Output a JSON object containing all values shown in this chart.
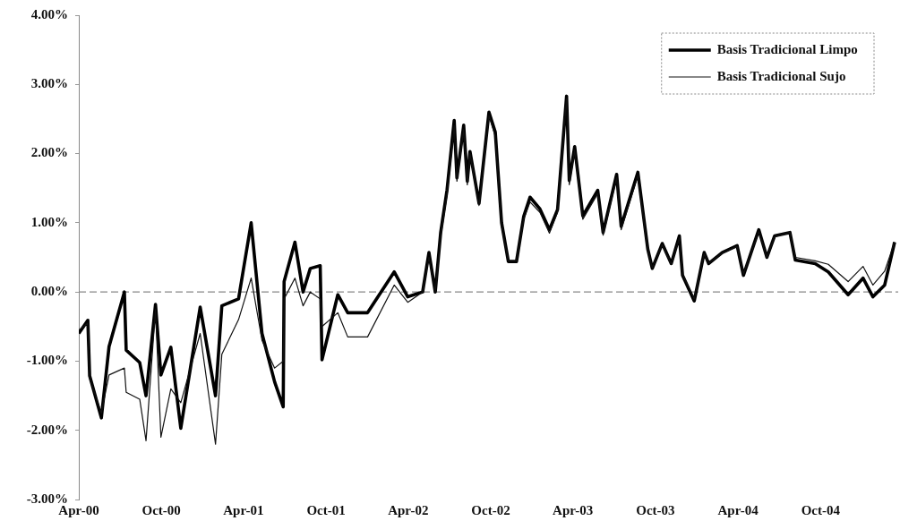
{
  "chart_data": {
    "type": "line",
    "legend": "top right",
    "grid": false,
    "marker": "none",
    "x": [
      "2000-04-01",
      "2000-04-21",
      "2000-04-25",
      "2000-05-21",
      "2000-06-07",
      "2000-07-11",
      "2000-07-15",
      "2000-08-14",
      "2000-08-28",
      "2000-09-18",
      "2000-09-30",
      "2000-10-22",
      "2000-11-13",
      "2000-12-26",
      "2001-01-29",
      "2001-02-12",
      "2001-03-21",
      "2001-04-18",
      "2001-05-12",
      "2001-06-09",
      "2001-06-28",
      "2001-06-30",
      "2001-07-24",
      "2001-08-11",
      "2001-08-27",
      "2001-09-18",
      "2001-09-22",
      "2001-10-27",
      "2001-11-18",
      "2002-01-01",
      "2002-03-01",
      "2002-03-31",
      "2002-05-03",
      "2002-05-17",
      "2002-05-31",
      "2002-06-12",
      "2002-06-26",
      "2002-07-12",
      "2002-07-18",
      "2002-08-02",
      "2002-08-10",
      "2002-08-16",
      "2002-09-05",
      "2002-09-27",
      "2002-10-11",
      "2002-10-25",
      "2002-11-09",
      "2002-11-27",
      "2002-12-13",
      "2002-12-27",
      "2003-01-18",
      "2003-02-08",
      "2003-02-26",
      "2003-03-18",
      "2003-03-24",
      "2003-04-05",
      "2003-04-23",
      "2003-05-26",
      "2003-06-07",
      "2003-07-07",
      "2003-07-17",
      "2003-08-23",
      "2003-09-14",
      "2003-09-24",
      "2003-10-16",
      "2003-11-05",
      "2003-11-23",
      "2003-11-30",
      "2003-12-26",
      "2004-01-17",
      "2004-01-27",
      "2004-02-26",
      "2004-03-30",
      "2004-04-13",
      "2004-05-17",
      "2004-06-04",
      "2004-06-21",
      "2004-07-25",
      "2004-08-06",
      "2004-09-19",
      "2004-10-18",
      "2004-12-01",
      "2005-01-03",
      "2005-01-25",
      "2005-02-20",
      "2005-03-14"
    ],
    "series": [
      {
        "name": "Basis Tradicional Limpo",
        "color": "#000000",
        "values": [
          -0.6,
          -0.41,
          -1.21,
          -1.82,
          -0.79,
          0.0,
          -0.84,
          -1.02,
          -1.5,
          -0.18,
          -1.2,
          -0.8,
          -1.97,
          -0.22,
          -1.5,
          -0.2,
          -0.1,
          1.0,
          -0.6,
          -1.3,
          -1.66,
          0.15,
          0.72,
          0.0,
          0.34,
          0.38,
          -0.98,
          -0.04,
          -0.3,
          -0.3,
          0.29,
          -0.07,
          0.0,
          0.57,
          0.0,
          0.86,
          1.47,
          2.48,
          1.65,
          2.41,
          1.6,
          2.03,
          1.28,
          2.6,
          2.31,
          1.0,
          0.44,
          0.44,
          1.09,
          1.37,
          1.2,
          0.9,
          1.19,
          2.83,
          1.61,
          2.1,
          1.1,
          1.47,
          0.86,
          1.7,
          0.95,
          1.73,
          0.62,
          0.34,
          0.7,
          0.41,
          0.81,
          0.24,
          -0.13,
          0.57,
          0.41,
          0.57,
          0.67,
          0.24,
          0.9,
          0.5,
          0.81,
          0.86,
          0.46,
          0.41,
          0.29,
          -0.04,
          0.2,
          -0.07,
          0.1,
          0.72
        ]
      },
      {
        "name": "Basis Tradicional Sujo",
        "color": "#111111",
        "values": [
          -0.55,
          -0.45,
          -1.25,
          -1.75,
          -1.2,
          -1.1,
          -1.45,
          -1.55,
          -2.15,
          -0.25,
          -2.1,
          -1.4,
          -1.6,
          -0.6,
          -2.2,
          -0.9,
          -0.4,
          0.2,
          -0.7,
          -1.1,
          -1.0,
          -0.1,
          0.2,
          -0.2,
          0.0,
          -0.1,
          -0.5,
          -0.3,
          -0.65,
          -0.65,
          0.1,
          -0.15,
          0.0,
          0.5,
          0.0,
          0.8,
          1.4,
          2.4,
          1.6,
          2.35,
          1.55,
          2.0,
          1.25,
          2.55,
          2.25,
          0.95,
          0.45,
          0.45,
          1.05,
          1.3,
          1.15,
          0.85,
          1.15,
          2.8,
          1.55,
          2.05,
          1.05,
          1.42,
          0.82,
          1.65,
          0.9,
          1.68,
          0.6,
          0.35,
          0.68,
          0.4,
          0.78,
          0.25,
          -0.1,
          0.55,
          0.42,
          0.56,
          0.66,
          0.26,
          0.87,
          0.5,
          0.8,
          0.86,
          0.5,
          0.45,
          0.4,
          0.15,
          0.37,
          0.1,
          0.3,
          0.72
        ]
      }
    ],
    "ref_lines": [
      {
        "axis": "y",
        "value": 0,
        "color": "#888888",
        "line_style": "dashed"
      }
    ],
    "ylim": [
      -3,
      4
    ],
    "yticks": [
      {
        "value": -3,
        "label": "-3.00%"
      },
      {
        "value": -2,
        "label": "-2.00%"
      },
      {
        "value": -1,
        "label": "-1.00%"
      },
      {
        "value": 0,
        "label": "0.00%"
      },
      {
        "value": 1,
        "label": "1.00%"
      },
      {
        "value": 2,
        "label": "2.00%"
      },
      {
        "value": 3,
        "label": "3.00%"
      },
      {
        "value": 4,
        "label": "4.00%"
      }
    ],
    "xlim": [
      "2000-04-01",
      "2005-03-22"
    ],
    "xticks": [
      {
        "value": "2000-04-01",
        "label": "Apr-00"
      },
      {
        "value": "2000-10-01",
        "label": "Oct-00"
      },
      {
        "value": "2001-04-01",
        "label": "Apr-01"
      },
      {
        "value": "2001-10-01",
        "label": "Oct-01"
      },
      {
        "value": "2002-04-01",
        "label": "Apr-02"
      },
      {
        "value": "2002-10-01",
        "label": "Oct-02"
      },
      {
        "value": "2003-04-01",
        "label": "Apr-03"
      },
      {
        "value": "2003-10-01",
        "label": "Oct-03"
      },
      {
        "value": "2004-04-01",
        "label": "Apr-04"
      },
      {
        "value": "2004-10-01",
        "label": "Oct-04"
      }
    ]
  }
}
